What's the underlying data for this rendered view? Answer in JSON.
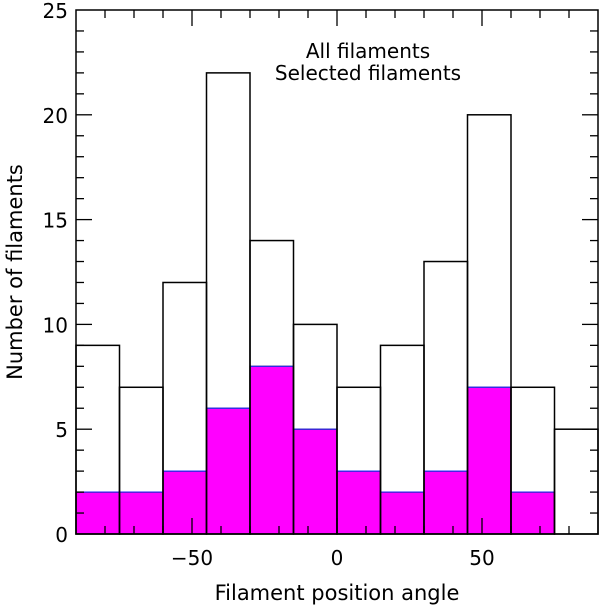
{
  "chart_data": {
    "type": "bar",
    "xlabel": "Filament position angle",
    "ylabel": "Number of filaments",
    "xlim": [
      -90,
      90
    ],
    "ylim": [
      0,
      25
    ],
    "bin_edges": [
      -90,
      -75,
      -60,
      -45,
      -30,
      -15,
      0,
      15,
      30,
      45,
      60,
      75,
      90
    ],
    "series": [
      {
        "name": "All filaments",
        "color": "#000000",
        "fill": "none",
        "values": [
          9,
          7,
          12,
          22,
          14,
          10,
          7,
          9,
          13,
          20,
          7,
          5
        ]
      },
      {
        "name": "Selected filaments",
        "color": "#ff00ff",
        "fill": "#ff00ff",
        "values": [
          2,
          2,
          3,
          6,
          8,
          5,
          3,
          2,
          3,
          7,
          2,
          0
        ]
      }
    ],
    "xticks_major": [
      -50,
      0,
      50
    ],
    "xtick_labels": [
      "−50",
      "0",
      "50"
    ],
    "yticks_major": [
      0,
      5,
      10,
      15,
      20,
      25
    ],
    "ytick_labels": [
      "0",
      "5",
      "10",
      "15",
      "20",
      "25"
    ],
    "legend_position": "top-center",
    "grid": false
  }
}
